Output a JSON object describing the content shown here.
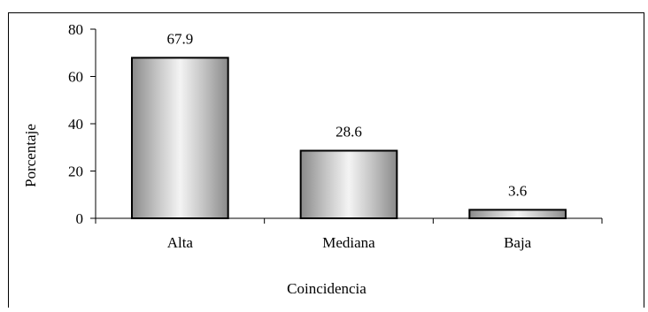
{
  "chart_data": {
    "type": "bar",
    "title": "",
    "xlabel": "Coincidencia",
    "ylabel": "Porcentaje",
    "categories": [
      "Alta",
      "Mediana",
      "Baja"
    ],
    "values": [
      67.9,
      28.6,
      3.6
    ],
    "data_labels": [
      "67.9",
      "28.6",
      "3.6"
    ],
    "ylim": [
      0,
      80
    ],
    "yticks": [
      0,
      20,
      40,
      60,
      80
    ],
    "grid": false,
    "legend": "none"
  }
}
